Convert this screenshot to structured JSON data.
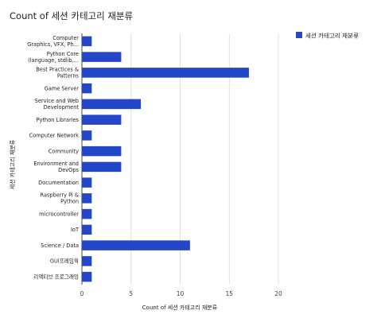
{
  "chart_data": {
    "type": "bar",
    "orientation": "horizontal",
    "title": "Count of 세션 카테고리 재분류",
    "xlabel": "Count of 세션 카테고리 재분류",
    "ylabel": "세션 카테고리 재분류",
    "xlim": [
      0,
      20
    ],
    "xticks": [
      0,
      5,
      10,
      15,
      20
    ],
    "grid": true,
    "legend_position": "top-right",
    "color": "#2447c7",
    "categories": [
      [
        "Computer",
        "Graphics, VFX, Ph..."
      ],
      [
        "Python Core",
        "(language, stdlib,..."
      ],
      [
        "Best Practices &",
        "Patterns"
      ],
      [
        "Game Server"
      ],
      [
        "Service and Web",
        "Development"
      ],
      [
        "Python Libraries"
      ],
      [
        "Computer Network"
      ],
      [
        "Community"
      ],
      [
        "Environment and",
        "DevOps"
      ],
      [
        "Documentation"
      ],
      [
        "Raspberry Pi &",
        "Python"
      ],
      [
        "microcontroller"
      ],
      [
        "IoT"
      ],
      [
        "Science / Data"
      ],
      [
        "GUI프레임웍"
      ],
      [
        "리액티브 프로그래밍"
      ]
    ],
    "series": [
      {
        "name": "세션 카테고리 재분류",
        "values": [
          1,
          4,
          17,
          1,
          6,
          4,
          1,
          4,
          4,
          1,
          1,
          1,
          1,
          11,
          1,
          1
        ]
      }
    ]
  }
}
